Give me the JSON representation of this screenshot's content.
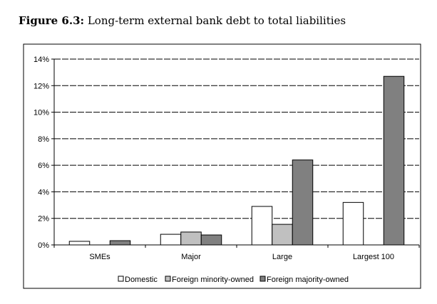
{
  "figure_label": "Figure 6.3:",
  "chart_data": {
    "type": "bar",
    "title": "Long-term external bank debt to total liabilities",
    "xlabel": "",
    "ylabel": "",
    "categories": [
      "SMEs",
      "Major",
      "Large",
      "Largest 100"
    ],
    "series": [
      {
        "name": "Domestic",
        "color": "#ffffff",
        "values": [
          0.27,
          0.8,
          2.9,
          3.2
        ]
      },
      {
        "name": "Foreign minority-owned",
        "color": "#c0c0c0",
        "values": [
          0,
          0.97,
          1.55,
          0
        ]
      },
      {
        "name": "Foreign majority-owned",
        "color": "#808080",
        "values": [
          0.32,
          0.75,
          6.4,
          12.7
        ]
      }
    ],
    "ylim": [
      0,
      14
    ],
    "yticks": [
      "0%",
      "2%",
      "4%",
      "6%",
      "8%",
      "10%",
      "12%",
      "14%"
    ],
    "grid": true,
    "legend_position": "bottom"
  }
}
